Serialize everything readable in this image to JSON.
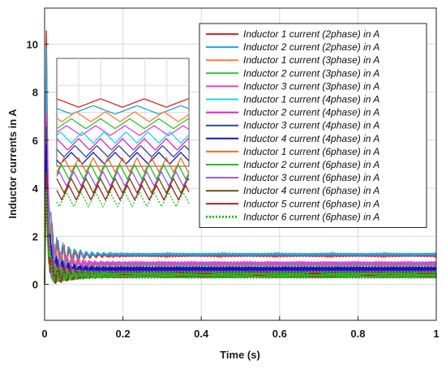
{
  "chart_data": {
    "type": "line",
    "title": "",
    "xlabel": "Time (s)",
    "ylabel": "Inductor currents in A",
    "xlim": [
      0,
      1
    ],
    "ylim": [
      -1.5,
      11.5
    ],
    "xticks": [
      0,
      0.2,
      0.4,
      0.6,
      0.8,
      1
    ],
    "xtick_labels": [
      "0",
      "0.2",
      "0.4",
      "0.6",
      "0.8",
      "1"
    ],
    "yticks": [
      0,
      2,
      4,
      6,
      8,
      10
    ],
    "ytick_labels": [
      "0",
      "2",
      "4",
      "6",
      "8",
      "10"
    ],
    "grid": true,
    "legend_position": "top-right",
    "series": [
      {
        "name": "Inductor 1 current (2phase) in A",
        "color": "#d62728",
        "style": "solid",
        "peak": 10.2,
        "steady": 1.2,
        "ripple": 0.06
      },
      {
        "name": "Inductor 2 current (2phase) in A",
        "color": "#2aa0d8",
        "style": "solid",
        "peak": 10.2,
        "steady": 1.25,
        "ripple": 0.06
      },
      {
        "name": "Inductor 1 current (3phase) in A",
        "color": "#ff7f3f",
        "style": "solid",
        "peak": 8.3,
        "steady": 0.85,
        "ripple": 0.08
      },
      {
        "name": "Inductor 2 current (3phase) in A",
        "color": "#33c13a",
        "style": "solid",
        "peak": 8.3,
        "steady": 0.82,
        "ripple": 0.08
      },
      {
        "name": "Inductor 3 current (3phase) in A",
        "color": "#e040e0",
        "style": "solid",
        "peak": 8.3,
        "steady": 0.88,
        "ripple": 0.08
      },
      {
        "name": "Inductor 1 current (4phase) in A",
        "color": "#1fd4e6",
        "style": "solid",
        "peak": 6.5,
        "steady": 0.62,
        "ripple": 0.1
      },
      {
        "name": "Inductor 2 current (4phase) in A",
        "color": "#e020c8",
        "style": "solid",
        "peak": 6.5,
        "steady": 0.66,
        "ripple": 0.1
      },
      {
        "name": "Inductor 3 current (4phase) in A",
        "color": "#2b4a8c",
        "style": "solid",
        "peak": 6.5,
        "steady": 0.6,
        "ripple": 0.1
      },
      {
        "name": "Inductor 4 current (4phase) in A",
        "color": "#1212c8",
        "style": "solid",
        "peak": 6.5,
        "steady": 0.64,
        "ripple": 0.1
      },
      {
        "name": "Inductor 1 current (6phase) in A",
        "color": "#f07020",
        "style": "solid",
        "peak": 4.4,
        "steady": 0.42,
        "ripple": 0.14
      },
      {
        "name": "Inductor 2 current (6phase) in A",
        "color": "#20c020",
        "style": "solid",
        "peak": 4.4,
        "steady": 0.4,
        "ripple": 0.14
      },
      {
        "name": "Inductor 3 current (6phase) in A",
        "color": "#a050f0",
        "style": "solid",
        "peak": 4.4,
        "steady": 0.44,
        "ripple": 0.14
      },
      {
        "name": "Inductor 4 current (6phase) in A",
        "color": "#6b4a10",
        "style": "solid",
        "peak": 4.4,
        "steady": 0.38,
        "ripple": 0.14
      },
      {
        "name": "Inductor 5 current (6phase) in A",
        "color": "#a02020",
        "style": "solid",
        "peak": 4.4,
        "steady": 0.41,
        "ripple": 0.14
      },
      {
        "name": "Inductor 6 current (6phase) in A",
        "color": "#22bb22",
        "style": "dotted",
        "peak": 4.4,
        "steady": 0.39,
        "ripple": 0.14
      }
    ]
  }
}
